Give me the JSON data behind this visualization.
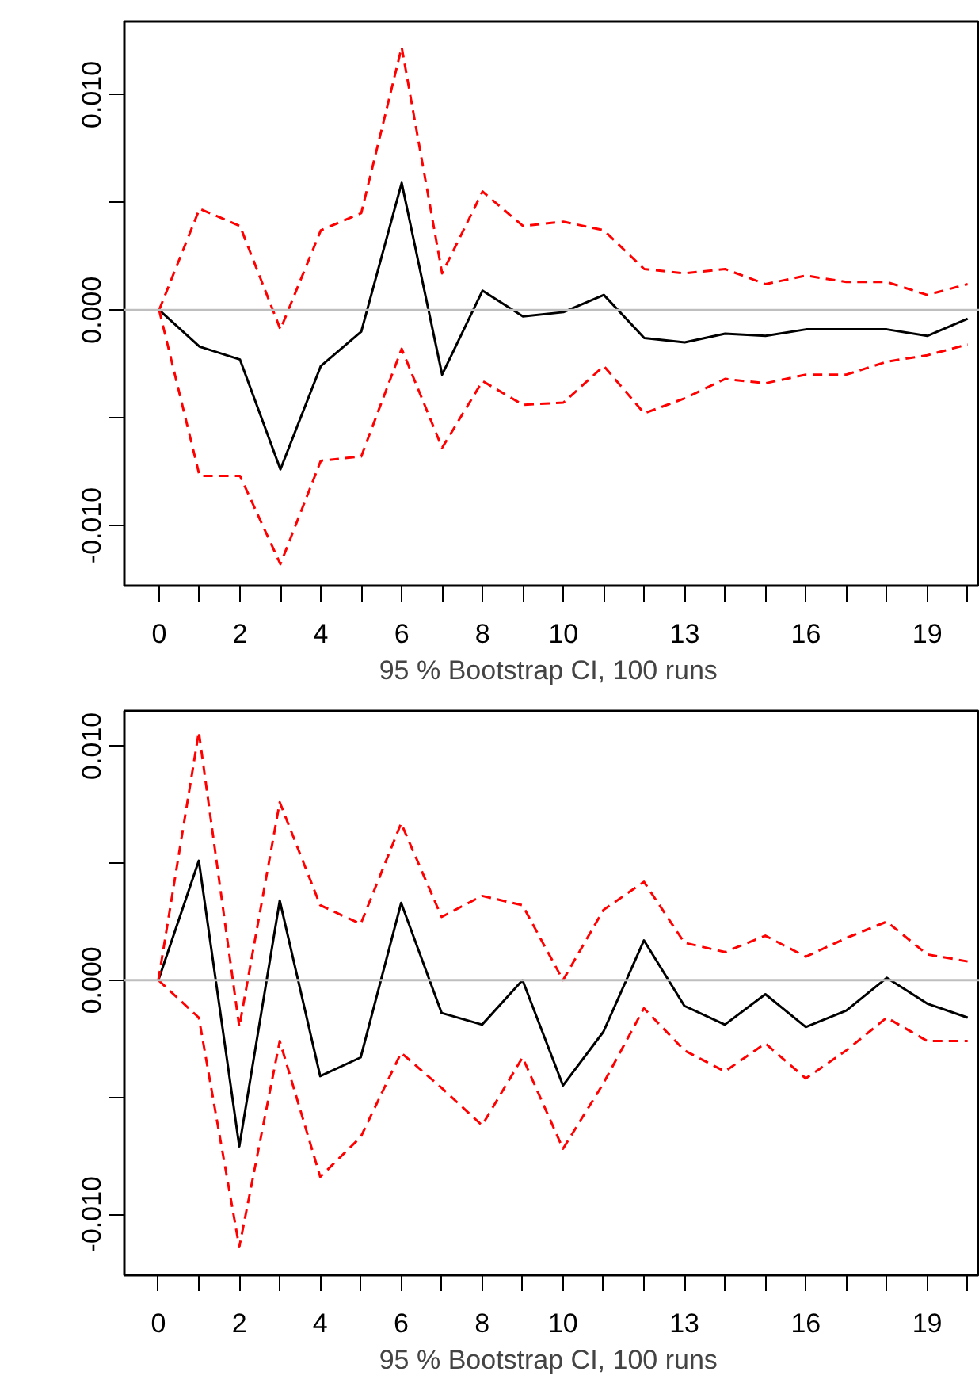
{
  "chart_data": [
    {
      "type": "line",
      "xlabel": "95 % Bootstrap CI,  100 runs",
      "x": [
        0,
        1,
        2,
        3,
        4,
        5,
        6,
        7,
        8,
        9,
        10,
        11,
        12,
        13,
        14,
        15,
        16,
        17,
        18,
        19,
        20
      ],
      "xlim": [
        -0.86,
        20.3
      ],
      "ylim": [
        -0.0128,
        0.0134
      ],
      "xticks": [
        0,
        {
          "value": 1,
          "label": null
        },
        2,
        {
          "value": 3,
          "label": null
        },
        4,
        {
          "value": 5,
          "label": null
        },
        6,
        {
          "value": 7,
          "label": null
        },
        8,
        {
          "value": 9,
          "label": null
        },
        10,
        {
          "value": 11,
          "label": null
        },
        {
          "value": 12,
          "label": null
        },
        13,
        {
          "value": 14,
          "label": null
        },
        {
          "value": 15,
          "label": null
        },
        16,
        {
          "value": 17,
          "label": null
        },
        {
          "value": 18,
          "label": null
        },
        19,
        {
          "value": 20,
          "label": null
        }
      ],
      "yticks": [
        {
          "value": -0.01,
          "label": "-0.010"
        },
        {
          "value": -0.005,
          "label": null
        },
        {
          "value": 0,
          "label": "0.000"
        },
        {
          "value": 0.005,
          "label": null
        },
        {
          "value": 0.01,
          "label": "0.010"
        }
      ],
      "ref_lines": [
        {
          "axis": "y",
          "value": 0,
          "color": "#bebebe"
        }
      ],
      "series": [
        {
          "line_style": "solid",
          "color": "#000000",
          "values": [
            0,
            -0.0017,
            -0.0023,
            -0.0074,
            -0.0026,
            -0.001,
            0.0059,
            -0.003,
            0.0009,
            -0.0003,
            -0.0001,
            0.0007,
            -0.0013,
            -0.0015,
            -0.0011,
            -0.0012,
            -0.0009,
            -0.0009,
            -0.0009,
            -0.0012,
            -0.0004
          ]
        },
        {
          "line_style": "dashed",
          "color": "#ff0000",
          "values": [
            0,
            0.0047,
            0.0039,
            -0.0009,
            0.0037,
            0.0045,
            0.0122,
            0.0017,
            0.0055,
            0.0039,
            0.0041,
            0.0037,
            0.0019,
            0.0017,
            0.0019,
            0.0012,
            0.0016,
            0.0013,
            0.0013,
            0.0007,
            0.0012
          ]
        },
        {
          "line_style": "dashed",
          "color": "#ff0000",
          "values": [
            0,
            -0.0077,
            -0.0077,
            -0.0118,
            -0.007,
            -0.0068,
            -0.0018,
            -0.0064,
            -0.0033,
            -0.0044,
            -0.0043,
            -0.0026,
            -0.0048,
            -0.0041,
            -0.0032,
            -0.0034,
            -0.003,
            -0.003,
            -0.0024,
            -0.0021,
            -0.0016
          ]
        }
      ]
    },
    {
      "type": "line",
      "xlabel": "95 % Bootstrap CI,  100 runs",
      "x": [
        0,
        1,
        2,
        3,
        4,
        5,
        6,
        7,
        8,
        9,
        10,
        11,
        12,
        13,
        14,
        15,
        16,
        17,
        18,
        19,
        20
      ],
      "xlim": [
        -0.84,
        20.3
      ],
      "ylim": [
        -0.0126,
        0.0115
      ],
      "xticks": [
        0,
        {
          "value": 1,
          "label": null
        },
        2,
        {
          "value": 3,
          "label": null
        },
        4,
        {
          "value": 5,
          "label": null
        },
        6,
        {
          "value": 7,
          "label": null
        },
        8,
        {
          "value": 9,
          "label": null
        },
        10,
        {
          "value": 11,
          "label": null
        },
        {
          "value": 12,
          "label": null
        },
        13,
        {
          "value": 14,
          "label": null
        },
        {
          "value": 15,
          "label": null
        },
        16,
        {
          "value": 17,
          "label": null
        },
        {
          "value": 18,
          "label": null
        },
        19,
        {
          "value": 20,
          "label": null
        }
      ],
      "yticks": [
        {
          "value": -0.01,
          "label": "-0.010"
        },
        {
          "value": -0.005,
          "label": null
        },
        {
          "value": 0,
          "label": "0.000"
        },
        {
          "value": 0.005,
          "label": null
        },
        {
          "value": 0.01,
          "label": "0.010"
        }
      ],
      "ref_lines": [
        {
          "axis": "y",
          "value": 0,
          "color": "#bebebe"
        }
      ],
      "series": [
        {
          "line_style": "solid",
          "color": "#000000",
          "values": [
            0,
            0.0051,
            -0.0071,
            0.0034,
            -0.0041,
            -0.0033,
            0.0033,
            -0.0014,
            -0.0019,
            0,
            -0.0045,
            -0.0022,
            0.0017,
            -0.0011,
            -0.0019,
            -0.0006,
            -0.002,
            -0.0013,
            0.0001,
            -0.001,
            -0.0016
          ]
        },
        {
          "line_style": "dashed",
          "color": "#ff0000",
          "values": [
            0,
            0.0106,
            -0.002,
            0.0076,
            0.0032,
            0.0024,
            0.0067,
            0.0027,
            0.0036,
            0.0032,
            0,
            0.003,
            0.0042,
            0.0016,
            0.0012,
            0.0019,
            0.001,
            0.0018,
            0.0025,
            0.0011,
            0.0008
          ]
        },
        {
          "line_style": "dashed",
          "color": "#ff0000",
          "values": [
            0,
            -0.0016,
            -0.0114,
            -0.0026,
            -0.0084,
            -0.0067,
            -0.0031,
            -0.0046,
            -0.0062,
            -0.0033,
            -0.0072,
            -0.0044,
            -0.0012,
            -0.003,
            -0.0039,
            -0.0027,
            -0.0042,
            -0.003,
            -0.0016,
            -0.0026,
            -0.0026
          ]
        }
      ]
    }
  ]
}
